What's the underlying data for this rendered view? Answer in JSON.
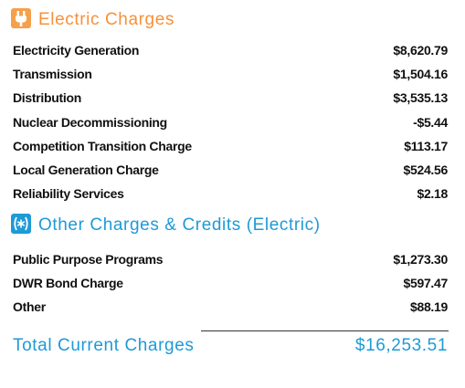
{
  "sections": [
    {
      "title": "Electric Charges",
      "rows": [
        {
          "label": "Electricity Generation",
          "amount": "$8,620.79"
        },
        {
          "label": "Transmission",
          "amount": "$1,504.16"
        },
        {
          "label": "Distribution",
          "amount": "$3,535.13"
        },
        {
          "label": "Nuclear Decommissioning",
          "amount": "-$5.44"
        },
        {
          "label": "Competition Transition Charge",
          "amount": "$113.17"
        },
        {
          "label": "Local Generation Charge",
          "amount": "$524.56"
        },
        {
          "label": "Reliability Services",
          "amount": "$2.18"
        }
      ]
    },
    {
      "title": "Other Charges & Credits (Electric)",
      "rows": [
        {
          "label": "Public Purpose Programs",
          "amount": "$1,273.30"
        },
        {
          "label": "DWR Bond Charge",
          "amount": "$597.47"
        },
        {
          "label": "Other",
          "amount": "$88.19"
        }
      ]
    }
  ],
  "total": {
    "label": "Total Current Charges",
    "amount": "$16,253.51"
  }
}
